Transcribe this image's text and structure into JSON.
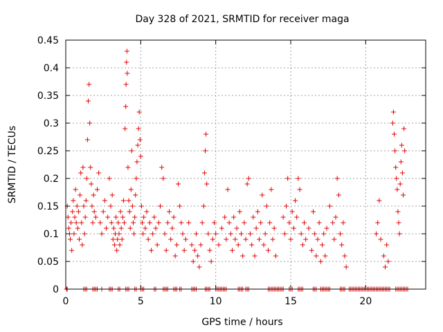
{
  "chart_data": {
    "type": "scatter",
    "title": "Day 328 of 2021, SRMTID for receiver maga",
    "xlabel": "GPS time / hours",
    "ylabel": "SRMTID / TECUs",
    "xlim": [
      0,
      24
    ],
    "ylim": [
      0,
      0.45
    ],
    "xticks": [
      0,
      5,
      10,
      15,
      20
    ],
    "xtick_labels": [
      "0",
      "5",
      "10",
      "15",
      "20"
    ],
    "yticks": [
      0,
      0.05,
      0.1,
      0.15,
      0.2,
      0.25,
      0.3,
      0.35,
      0.4,
      0.45
    ],
    "ytick_labels": [
      "0",
      "0.05",
      "0.1",
      "0.15",
      "0.2",
      "0.25",
      "0.3",
      "0.35",
      "0.4",
      "0.45"
    ],
    "grid": true,
    "marker": "+",
    "color": "#e00000",
    "series": [
      {
        "name": "SRMTID",
        "points": [
          [
            0.1,
            0.15
          ],
          [
            0.15,
            0.13
          ],
          [
            0.2,
            0.11
          ],
          [
            0.25,
            0.1
          ],
          [
            0.3,
            0.09
          ],
          [
            0.35,
            0.12
          ],
          [
            0.4,
            0.07
          ],
          [
            0.45,
            0.14
          ],
          [
            0.5,
            0.16
          ],
          [
            0.55,
            0.1
          ],
          [
            0.6,
            0.13
          ],
          [
            0.65,
            0.18
          ],
          [
            0.7,
            0.12
          ],
          [
            0.75,
            0.15
          ],
          [
            0.8,
            0.11
          ],
          [
            0.85,
            0.14
          ],
          [
            0.9,
            0.09
          ],
          [
            0.95,
            0.17
          ],
          [
            1.0,
            0.21
          ],
          [
            1.05,
            0.12
          ],
          [
            1.1,
            0.08
          ],
          [
            1.15,
            0.22
          ],
          [
            1.2,
            0.15
          ],
          [
            1.25,
            0.1
          ],
          [
            1.3,
            0.13
          ],
          [
            1.35,
            0.16
          ],
          [
            1.4,
            0.2
          ],
          [
            1.45,
            0.27
          ],
          [
            1.5,
            0.34
          ],
          [
            1.55,
            0.37
          ],
          [
            1.6,
            0.3
          ],
          [
            1.65,
            0.22
          ],
          [
            1.7,
            0.19
          ],
          [
            1.75,
            0.15
          ],
          [
            1.8,
            0.12
          ],
          [
            1.85,
            0.17
          ],
          [
            1.9,
            0.14
          ],
          [
            2.0,
            0.13
          ],
          [
            2.1,
            0.18
          ],
          [
            2.2,
            0.21
          ],
          [
            2.3,
            0.12
          ],
          [
            2.4,
            0.1
          ],
          [
            2.5,
            0.14
          ],
          [
            2.6,
            0.16
          ],
          [
            2.7,
            0.11
          ],
          [
            2.8,
            0.13
          ],
          [
            2.9,
            0.2
          ],
          [
            3.0,
            0.15
          ],
          [
            3.05,
            0.12
          ],
          [
            3.1,
            0.17
          ],
          [
            3.15,
            0.09
          ],
          [
            3.2,
            0.11
          ],
          [
            3.25,
            0.08
          ],
          [
            3.3,
            0.1
          ],
          [
            3.35,
            0.13
          ],
          [
            3.4,
            0.07
          ],
          [
            3.45,
            0.09
          ],
          [
            3.5,
            0.12
          ],
          [
            3.55,
            0.1
          ],
          [
            3.6,
            0.08
          ],
          [
            3.65,
            0.14
          ],
          [
            3.7,
            0.11
          ],
          [
            3.75,
            0.09
          ],
          [
            3.8,
            0.13
          ],
          [
            3.85,
            0.16
          ],
          [
            3.9,
            0.12
          ],
          [
            3.95,
            0.29
          ],
          [
            4.0,
            0.33
          ],
          [
            4.02,
            0.37
          ],
          [
            4.05,
            0.41
          ],
          [
            4.08,
            0.43
          ],
          [
            4.1,
            0.39
          ],
          [
            4.15,
            0.22
          ],
          [
            4.2,
            0.16
          ],
          [
            4.25,
            0.14
          ],
          [
            4.3,
            0.11
          ],
          [
            4.35,
            0.18
          ],
          [
            4.4,
            0.25
          ],
          [
            4.45,
            0.15
          ],
          [
            4.5,
            0.12
          ],
          [
            4.55,
            0.1
          ],
          [
            4.6,
            0.13
          ],
          [
            4.65,
            0.17
          ],
          [
            4.7,
            0.2
          ],
          [
            4.75,
            0.23
          ],
          [
            4.8,
            0.26
          ],
          [
            4.85,
            0.29
          ],
          [
            4.9,
            0.32
          ],
          [
            4.95,
            0.27
          ],
          [
            5.0,
            0.24
          ],
          [
            5.05,
            0.15
          ],
          [
            5.1,
            0.12
          ],
          [
            5.15,
            0.1
          ],
          [
            5.2,
            0.13
          ],
          [
            5.3,
            0.11
          ],
          [
            5.4,
            0.14
          ],
          [
            5.5,
            0.09
          ],
          [
            5.6,
            0.12
          ],
          [
            5.7,
            0.07
          ],
          [
            5.8,
            0.1
          ],
          [
            5.9,
            0.13
          ],
          [
            6.0,
            0.11
          ],
          [
            6.1,
            0.08
          ],
          [
            6.2,
            0.12
          ],
          [
            6.3,
            0.15
          ],
          [
            6.4,
            0.22
          ],
          [
            6.5,
            0.2
          ],
          [
            6.6,
            0.1
          ],
          [
            6.7,
            0.07
          ],
          [
            6.8,
            0.12
          ],
          [
            6.9,
            0.14
          ],
          [
            7.0,
            0.09
          ],
          [
            7.1,
            0.11
          ],
          [
            7.2,
            0.13
          ],
          [
            7.3,
            0.06
          ],
          [
            7.4,
            0.08
          ],
          [
            7.5,
            0.19
          ],
          [
            7.6,
            0.15
          ],
          [
            7.7,
            0.12
          ],
          [
            7.8,
            0.1
          ],
          [
            7.9,
            0.07
          ],
          [
            8.0,
            0.09
          ],
          [
            8.2,
            0.12
          ],
          [
            8.4,
            0.08
          ],
          [
            8.5,
            0.05
          ],
          [
            8.6,
            0.07
          ],
          [
            8.7,
            0.1
          ],
          [
            8.8,
            0.06
          ],
          [
            8.9,
            0.04
          ],
          [
            9.0,
            0.08
          ],
          [
            9.1,
            0.12
          ],
          [
            9.2,
            0.15
          ],
          [
            9.25,
            0.21
          ],
          [
            9.3,
            0.25
          ],
          [
            9.35,
            0.28
          ],
          [
            9.4,
            0.19
          ],
          [
            9.5,
            0.1
          ],
          [
            9.6,
            0.07
          ],
          [
            9.7,
            0.05
          ],
          [
            9.8,
            0.09
          ],
          [
            9.9,
            0.12
          ],
          [
            10.0,
            0.1
          ],
          [
            10.2,
            0.08
          ],
          [
            10.4,
            0.11
          ],
          [
            10.6,
            0.13
          ],
          [
            10.7,
            0.09
          ],
          [
            10.8,
            0.18
          ],
          [
            10.9,
            0.12
          ],
          [
            11.0,
            0.1
          ],
          [
            11.1,
            0.07
          ],
          [
            11.2,
            0.13
          ],
          [
            11.3,
            0.09
          ],
          [
            11.4,
            0.11
          ],
          [
            11.5,
            0.08
          ],
          [
            11.6,
            0.14
          ],
          [
            11.7,
            0.1
          ],
          [
            11.8,
            0.06
          ],
          [
            11.9,
            0.12
          ],
          [
            12.0,
            0.09
          ],
          [
            12.1,
            0.19
          ],
          [
            12.2,
            0.2
          ],
          [
            12.3,
            0.1
          ],
          [
            12.4,
            0.08
          ],
          [
            12.5,
            0.13
          ],
          [
            12.6,
            0.06
          ],
          [
            12.7,
            0.11
          ],
          [
            12.8,
            0.14
          ],
          [
            12.9,
            0.09
          ],
          [
            13.0,
            0.12
          ],
          [
            13.1,
            0.17
          ],
          [
            13.2,
            0.08
          ],
          [
            13.3,
            0.1
          ],
          [
            13.4,
            0.15
          ],
          [
            13.5,
            0.07
          ],
          [
            13.6,
            0.12
          ],
          [
            13.7,
            0.18
          ],
          [
            13.8,
            0.09
          ],
          [
            13.9,
            0.11
          ],
          [
            14.0,
            0.06
          ],
          [
            14.5,
            0.13
          ],
          [
            14.6,
            0.1
          ],
          [
            14.7,
            0.15
          ],
          [
            14.8,
            0.2
          ],
          [
            14.9,
            0.12
          ],
          [
            15.0,
            0.09
          ],
          [
            15.1,
            0.14
          ],
          [
            15.2,
            0.11
          ],
          [
            15.3,
            0.16
          ],
          [
            15.4,
            0.13
          ],
          [
            15.5,
            0.2
          ],
          [
            15.6,
            0.18
          ],
          [
            15.7,
            0.1
          ],
          [
            15.8,
            0.08
          ],
          [
            15.9,
            0.12
          ],
          [
            16.0,
            0.09
          ],
          [
            16.2,
            0.11
          ],
          [
            16.4,
            0.07
          ],
          [
            16.5,
            0.14
          ],
          [
            16.6,
            0.1
          ],
          [
            16.7,
            0.06
          ],
          [
            16.8,
            0.09
          ],
          [
            16.9,
            0.12
          ],
          [
            17.0,
            0.05
          ],
          [
            17.1,
            0.08
          ],
          [
            17.2,
            0.1
          ],
          [
            17.3,
            0.06
          ],
          [
            17.4,
            0.11
          ],
          [
            17.6,
            0.15
          ],
          [
            17.8,
            0.12
          ],
          [
            17.9,
            0.09
          ],
          [
            18.0,
            0.13
          ],
          [
            18.1,
            0.2
          ],
          [
            18.2,
            0.17
          ],
          [
            18.3,
            0.1
          ],
          [
            18.4,
            0.08
          ],
          [
            18.5,
            0.12
          ],
          [
            18.6,
            0.06
          ],
          [
            18.7,
            0.04
          ],
          [
            20.7,
            0.1
          ],
          [
            20.8,
            0.12
          ],
          [
            20.9,
            0.16
          ],
          [
            21.0,
            0.09
          ],
          [
            21.2,
            0.06
          ],
          [
            21.3,
            0.04
          ],
          [
            21.4,
            0.08
          ],
          [
            21.5,
            0.05
          ],
          [
            21.8,
            0.3
          ],
          [
            21.85,
            0.32
          ],
          [
            21.9,
            0.28
          ],
          [
            21.95,
            0.25
          ],
          [
            22.0,
            0.22
          ],
          [
            22.05,
            0.2
          ],
          [
            22.1,
            0.18
          ],
          [
            22.15,
            0.14
          ],
          [
            22.2,
            0.12
          ],
          [
            22.25,
            0.1
          ],
          [
            22.3,
            0.19
          ],
          [
            22.35,
            0.23
          ],
          [
            22.4,
            0.26
          ],
          [
            22.45,
            0.21
          ],
          [
            22.5,
            0.17
          ],
          [
            22.55,
            0.29
          ],
          [
            22.6,
            0.25
          ]
        ],
        "zero_x": [
          0.05,
          0.1,
          1.2,
          1.3,
          1.4,
          1.8,
          1.9,
          2.0,
          2.1,
          2.4,
          2.9,
          3.0,
          3.1,
          3.5,
          3.6,
          4.0,
          4.1,
          4.2,
          4.6,
          4.7,
          5.0,
          5.1,
          5.2,
          5.9,
          6.0,
          6.5,
          6.6,
          6.7,
          6.8,
          7.2,
          7.3,
          7.4,
          7.6,
          7.7,
          8.4,
          8.5,
          8.6,
          8.7,
          9.3,
          9.4,
          9.5,
          9.6,
          10.0,
          10.1,
          10.2,
          10.3,
          10.4,
          10.5,
          10.6,
          10.7,
          11.5,
          11.6,
          11.7,
          11.8,
          12.0,
          12.1,
          12.2,
          13.5,
          13.6,
          13.7,
          13.8,
          13.9,
          14.0,
          14.1,
          14.2,
          14.3,
          14.4,
          14.5,
          14.9,
          15.0,
          15.1,
          15.5,
          15.6,
          15.7,
          15.8,
          16.5,
          16.6,
          16.7,
          17.0,
          17.1,
          17.2,
          17.3,
          17.4,
          17.5,
          17.6,
          18.3,
          18.4,
          18.5,
          18.6,
          18.9,
          19.0,
          19.1,
          19.2,
          19.3,
          19.4,
          19.5,
          19.6,
          19.7,
          19.8,
          19.9,
          20.0,
          20.1,
          20.2,
          20.3,
          20.4,
          20.5,
          20.6,
          20.7,
          20.8,
          20.9,
          21.0,
          21.1,
          21.2,
          21.3,
          21.4,
          21.5,
          21.6,
          22.0,
          22.1,
          22.2,
          22.3,
          22.4,
          22.5,
          22.6,
          22.7,
          22.8
        ]
      }
    ]
  }
}
